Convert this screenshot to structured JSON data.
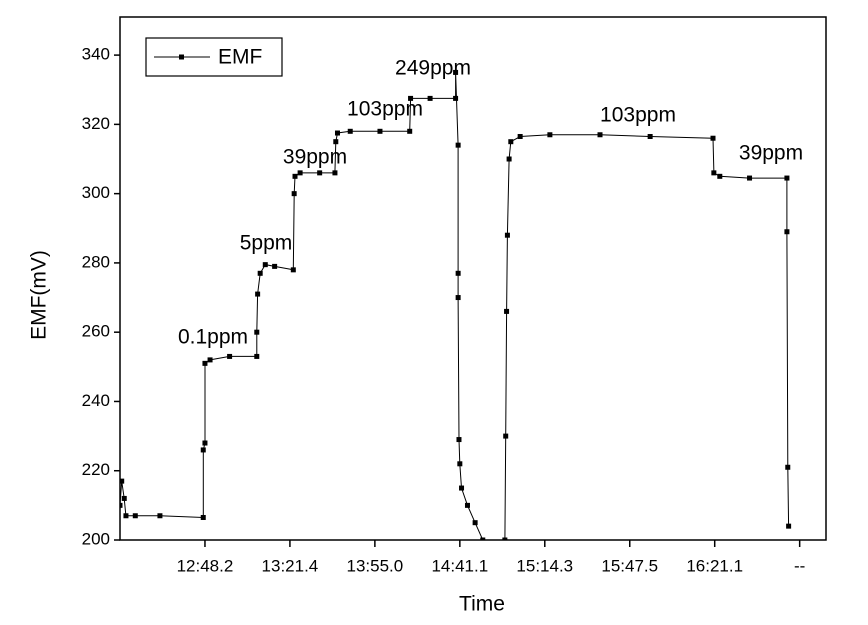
{
  "chart_data": {
    "type": "line",
    "xlabel": "Time",
    "ylabel": "EMF(mV)",
    "xlim": [
      0,
      8.31
    ],
    "ylim": [
      200,
      351
    ],
    "xticks": [
      {
        "value": 1,
        "label": "12:48.2"
      },
      {
        "value": 2,
        "label": "13:21.4"
      },
      {
        "value": 3,
        "label": "13:55.0"
      },
      {
        "value": 4,
        "label": "14:41.1"
      },
      {
        "value": 5,
        "label": "15:14.3"
      },
      {
        "value": 6,
        "label": "15:47.5"
      },
      {
        "value": 7,
        "label": "16:21.1"
      },
      {
        "value": 8,
        "label": "--"
      }
    ],
    "yticks": [
      200,
      220,
      240,
      260,
      280,
      300,
      320,
      340
    ],
    "legend": "top-left",
    "annotations": [
      "0.1ppm",
      "5ppm",
      "39ppm",
      "103ppm",
      "249ppm",
      "103ppm",
      "39ppm"
    ],
    "series": [
      {
        "name": "EMF",
        "color": "#000000",
        "x": [
          0,
          0.02,
          0.05,
          0.07,
          0.18,
          0.47,
          0.98,
          0.98,
          1.0,
          1.0,
          1.06,
          1.29,
          1.61,
          1.61,
          1.62,
          1.65,
          1.71,
          1.82,
          2.04,
          2.05,
          2.06,
          2.12,
          2.35,
          2.53,
          2.54,
          2.56,
          2.71,
          3.06,
          3.41,
          3.42,
          3.65,
          3.95,
          3.95,
          3.98,
          3.98,
          3.98,
          3.99,
          4.0,
          4.02,
          4.09,
          4.18,
          4.27,
          null,
          4.53,
          4.54,
          4.55,
          4.56,
          4.58,
          4.6,
          4.71,
          5.06,
          5.65,
          6.24,
          6.98,
          6.99,
          7.06,
          7.41,
          7.85,
          7.85,
          7.86,
          7.87
        ],
        "values": [
          210,
          217,
          212,
          207,
          207,
          207,
          206.5,
          226,
          228,
          251,
          252,
          253,
          253,
          260,
          271,
          277,
          279.5,
          279,
          278,
          300,
          305,
          306,
          306,
          306,
          315,
          317.5,
          318,
          318,
          318,
          327.5,
          327.5,
          327.5,
          335,
          314,
          277,
          270,
          229,
          222,
          215,
          210,
          205,
          200,
          null,
          200,
          230,
          266,
          288,
          310,
          315,
          316.5,
          317,
          317,
          316.5,
          316,
          306,
          305,
          304.5,
          304.5,
          289,
          221,
          204
        ]
      }
    ]
  }
}
